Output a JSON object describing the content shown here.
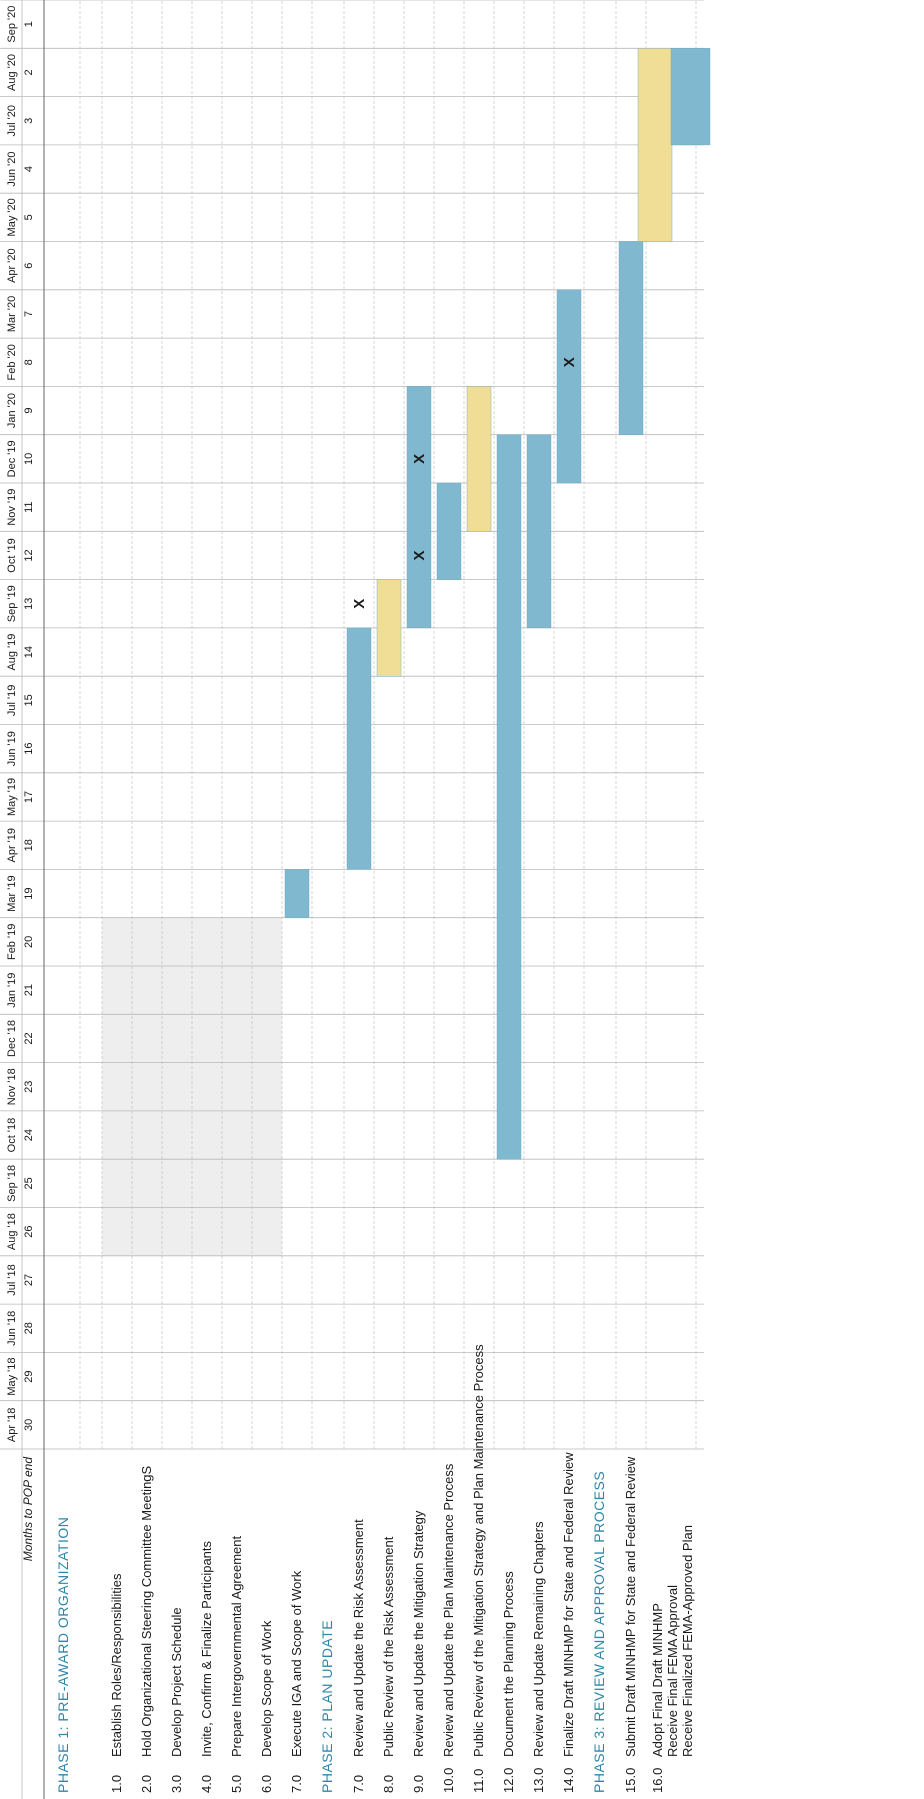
{
  "chart_data": {
    "type": "gantt",
    "header_label": "Months to POP end",
    "months": [
      "Apr '18",
      "May '18",
      "Jun '18",
      "Jul '18",
      "Aug '18",
      "Sep '18",
      "Oct '18",
      "Nov '18",
      "Dec '18",
      "Jan '19",
      "Feb '19",
      "Mar '19",
      "Apr '19",
      "May '19",
      "Jun '19",
      "Jul '19",
      "Aug '19",
      "Sep '19",
      "Oct '19",
      "Nov '19",
      "Dec '19",
      "Jan '20",
      "Feb '20",
      "Mar '20",
      "Apr '20",
      "May '20",
      "Jun '20",
      "Jul '20",
      "Aug '20",
      "Sep '20"
    ],
    "countdown": [
      30,
      29,
      28,
      27,
      26,
      25,
      24,
      23,
      22,
      21,
      20,
      19,
      18,
      17,
      16,
      15,
      14,
      13,
      12,
      11,
      10,
      9,
      8,
      7,
      6,
      5,
      4,
      3,
      2,
      1
    ],
    "colors": {
      "primary": "#80b8cf",
      "review": "#f1de96",
      "grid": "#b9b9b9",
      "phase": "#2f86a8",
      "shade": "#d9d9d9"
    },
    "rows": [
      {
        "kind": "phase",
        "label": "PHASE 1: PRE-AWARD ORGANIZATION"
      },
      {
        "kind": "spacer"
      },
      {
        "kind": "task",
        "num": "1.0",
        "label": "Establish Roles/Responsibilities",
        "shade": [
          4,
          11
        ]
      },
      {
        "kind": "task",
        "num": "2.0",
        "label": "Hold Organizational Steering Committee MeetingS",
        "shade": [
          4,
          11
        ]
      },
      {
        "kind": "task",
        "num": "3.0",
        "label": "Develop Project Schedule",
        "shade": [
          4,
          11
        ]
      },
      {
        "kind": "task",
        "num": "4.0",
        "label": "Invite, Confirm & Finalize Participants",
        "shade": [
          4,
          11
        ]
      },
      {
        "kind": "task",
        "num": "5.0",
        "label": "Prepare Intergovernmental Agreement",
        "shade": [
          4,
          11
        ]
      },
      {
        "kind": "task",
        "num": "6.0",
        "label": "Develop Scope of Work",
        "shade": [
          4,
          11
        ]
      },
      {
        "kind": "task",
        "num": "7.0",
        "label": "Execute IGA and Scope of Work",
        "bars": [
          {
            "start": 11,
            "end": 12,
            "color": "primary"
          }
        ]
      },
      {
        "kind": "phase",
        "label": "PHASE 2: PLAN UPDATE"
      },
      {
        "kind": "task",
        "num": "7.0",
        "label": "Review and Update the Risk Assessment",
        "bars": [
          {
            "start": 12,
            "end": 17,
            "color": "primary"
          }
        ],
        "marks": [
          17
        ]
      },
      {
        "kind": "task",
        "num": "8.0",
        "label": "Public Review of the Risk Assessment",
        "bars": [
          {
            "start": 16,
            "end": 18,
            "color": "review"
          }
        ]
      },
      {
        "kind": "task",
        "num": "9.0",
        "label": "Review and Update the Mitigation Strategy",
        "bars": [
          {
            "start": 17,
            "end": 22,
            "color": "primary"
          }
        ],
        "marks": [
          18,
          20
        ]
      },
      {
        "kind": "task",
        "num": "10.0",
        "label": "Review and Update the Plan Maintenance Process",
        "bars": [
          {
            "start": 18,
            "end": 20,
            "color": "primary"
          }
        ]
      },
      {
        "kind": "task",
        "num": "11.0",
        "label": "Public Review of the Mitigation Strategy and Plan Maintenance Process",
        "bars": [
          {
            "start": 19,
            "end": 22,
            "color": "review"
          }
        ]
      },
      {
        "kind": "task",
        "num": "12.0",
        "label": "Document the Planning Process",
        "bars": [
          {
            "start": 6,
            "end": 21,
            "color": "primary"
          }
        ]
      },
      {
        "kind": "task",
        "num": "13.0",
        "label": "Review and Update Remaining Chapters",
        "bars": [
          {
            "start": 17,
            "end": 21,
            "color": "primary"
          }
        ]
      },
      {
        "kind": "task",
        "num": "14.0",
        "label": "Finalize Draft MINHMP for State and Federal Review",
        "bars": [
          {
            "start": 20,
            "end": 24,
            "color": "primary"
          }
        ],
        "marks": [
          22
        ]
      },
      {
        "kind": "phase",
        "label": "PHASE 3: REVIEW AND APPROVAL PROCESS"
      },
      {
        "kind": "task",
        "num": "15.0",
        "label": "Submit Draft MINHMP for State and Federal Review",
        "bars": [
          {
            "start": 21,
            "end": 25,
            "color": "primary"
          }
        ]
      },
      {
        "kind": "task",
        "num": "16.0",
        "label": "Adopt Final Draft MINHMP",
        "label2": "Receive Final FEMA Approval",
        "label3": "Receive Finalized FEMA-Approved Plan",
        "tall": true,
        "bars": [
          {
            "start": 25,
            "end": 29,
            "color": "review",
            "part": "top"
          },
          {
            "start": 27,
            "end": 29,
            "color": "primary",
            "part": "bottom"
          }
        ]
      }
    ]
  }
}
